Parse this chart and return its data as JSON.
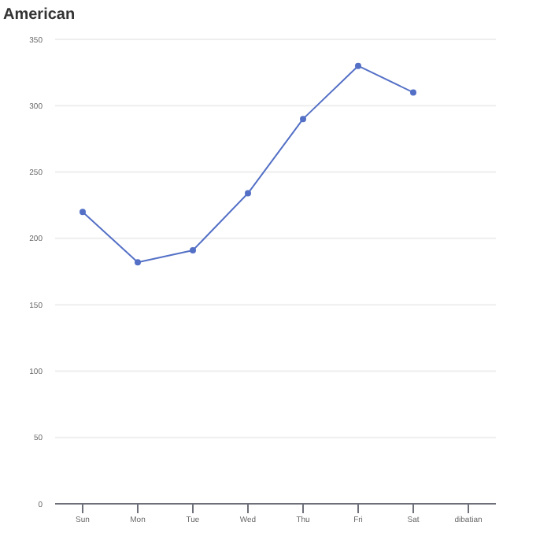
{
  "chart_data": {
    "type": "line",
    "title": "American",
    "categories": [
      "Sun",
      "Mon",
      "Tue",
      "Wed",
      "Thu",
      "Fri",
      "Sat",
      "dibatian"
    ],
    "series": [
      {
        "color": "#5470c6",
        "values": [
          220,
          182,
          191,
          234,
          290,
          330,
          310,
          null
        ]
      }
    ],
    "ylim": [
      0,
      350
    ],
    "yticks": [
      0,
      50,
      100,
      150,
      200,
      250,
      300,
      350
    ],
    "grid": "y",
    "marker": "circle",
    "legend": false
  }
}
